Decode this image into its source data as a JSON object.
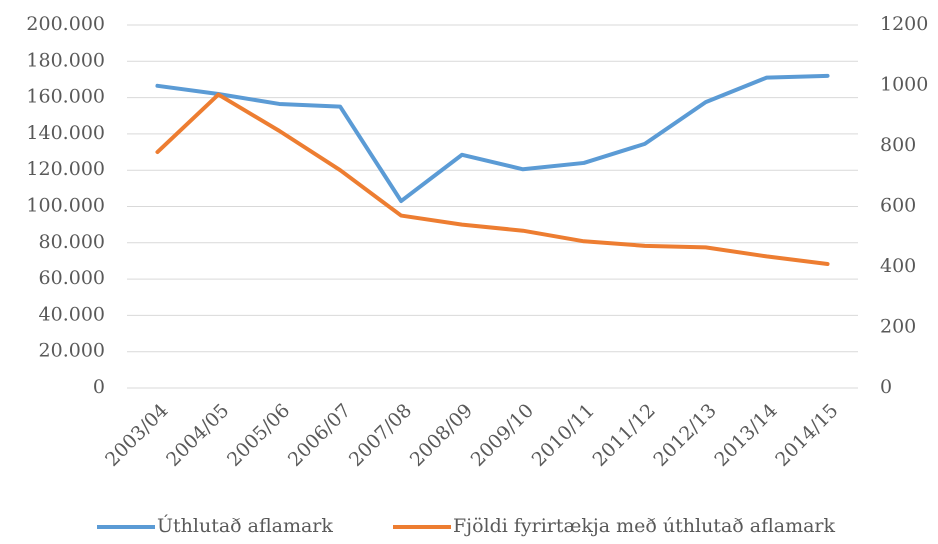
{
  "chart_data": {
    "type": "line",
    "categories": [
      "2003/04",
      "2004/05",
      "2005/06",
      "2006/07",
      "2007/08",
      "2008/09",
      "2009/10",
      "2010/11",
      "2011/12",
      "2012/13",
      "2013/14",
      "2014/15"
    ],
    "series": [
      {
        "name": "Úthlutað aflamark",
        "color": "#5b9bd5",
        "values": [
          166500,
          162000,
          156500,
          155000,
          103000,
          128500,
          120500,
          124000,
          134500,
          157500,
          171000,
          172000
        ]
      },
      {
        "name": "Fjöldi fyrirtækja með úthlutað aflamark",
        "color": "#ed7d31",
        "axis": "y2",
        "values": [
          780,
          970,
          850,
          720,
          570,
          540,
          520,
          485,
          470,
          465,
          435,
          410
        ]
      }
    ],
    "ylim": [
      0,
      200000
    ],
    "yticks": [
      0,
      {
        "value": 20000,
        "label": "20.000"
      },
      {
        "value": 40000,
        "label": "40.000"
      },
      {
        "value": 60000,
        "label": "60.000"
      },
      {
        "value": 80000,
        "label": "80.000"
      },
      {
        "value": 100000,
        "label": "100.000"
      },
      {
        "value": 120000,
        "label": "120.000"
      },
      {
        "value": 140000,
        "label": "140.000"
      },
      {
        "value": 160000,
        "label": "160.000"
      },
      {
        "value": 180000,
        "label": "180.000"
      },
      {
        "value": 200000,
        "label": "200.000"
      }
    ],
    "y2lim": [
      0,
      1200
    ],
    "y2ticks": [
      0,
      200,
      400,
      600,
      800,
      1000,
      1200
    ],
    "grid": true,
    "legend": "bottom"
  }
}
